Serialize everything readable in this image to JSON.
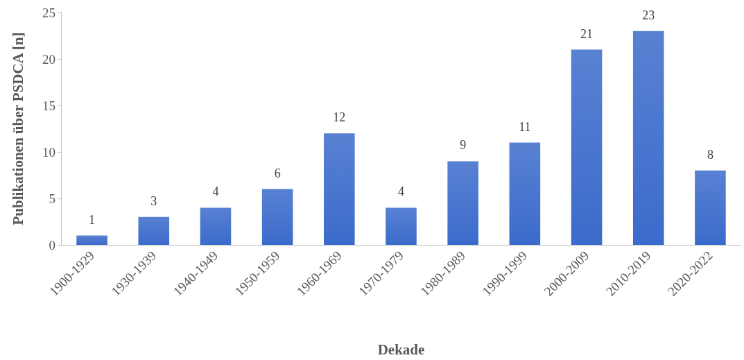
{
  "chart_data": {
    "type": "bar",
    "categories": [
      "1900-1929",
      "1930-1939",
      "1940-1949",
      "1950-1959",
      "1960-1969",
      "1970-1979",
      "1980-1989",
      "1990-1999",
      "2000-2009",
      "2010-2019",
      "2020-2022"
    ],
    "values": [
      1,
      3,
      4,
      6,
      12,
      4,
      9,
      11,
      21,
      23,
      8
    ],
    "color": "#3b6bcb",
    "xlabel": "Dekade",
    "ylabel": "Publikationen über PSDCA [n]",
    "ylim": [
      0,
      25
    ],
    "yticks": [
      0,
      5,
      10,
      15,
      20,
      25
    ],
    "grid": false,
    "data_labels": true
  }
}
